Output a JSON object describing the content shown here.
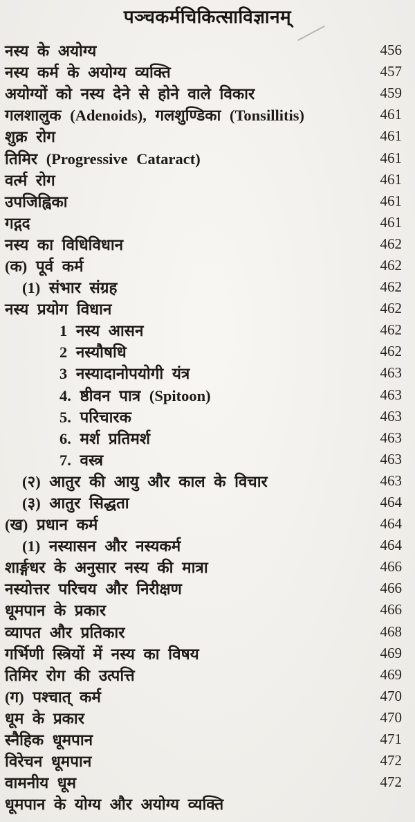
{
  "document": {
    "title": "पञ्चकर्मचिकित्साविज्ञानम्",
    "colors": {
      "paper": "#f4f2ed",
      "ink": "#1e1b17"
    },
    "toc": {
      "entries": [
        {
          "label": "नस्य के अयोग्य",
          "page": "456",
          "indent": 0
        },
        {
          "label": "नस्य कर्म के अयोग्य व्यक्ति",
          "page": "457",
          "indent": 0
        },
        {
          "label": "अयोग्यों को नस्य देने से होने वाले विकार",
          "page": "459",
          "indent": 0
        },
        {
          "label": "गलशालुक (Adenoids), गलशुण्डिका (Tonsillitis)",
          "page": "461",
          "indent": 0
        },
        {
          "label": "शुक्र रोग",
          "page": "461",
          "indent": 0
        },
        {
          "label": "तिमिर (Progressive Cataract)",
          "page": "461",
          "indent": 0
        },
        {
          "label": "वर्त्म रोग",
          "page": "461",
          "indent": 0
        },
        {
          "label": "उपजिह्विका",
          "page": "461",
          "indent": 0
        },
        {
          "label": "गद्गद",
          "page": "461",
          "indent": 0
        },
        {
          "label": "नस्य का विधिविधान",
          "page": "462",
          "indent": 0
        },
        {
          "label": "(क) पूर्व कर्म",
          "page": "462",
          "indent": 0
        },
        {
          "label": "(1) संभार संग्रह",
          "page": "462",
          "indent": 1
        },
        {
          "label": "नस्य प्रयोग विधान",
          "page": "462",
          "indent": 0
        },
        {
          "label": "1 नस्य आसन",
          "page": "462",
          "indent": 2
        },
        {
          "label": "2 नस्यौषधि",
          "page": "462",
          "indent": 2
        },
        {
          "label": "3 नस्यादानोपयोगी यंत्र",
          "page": "463",
          "indent": 2
        },
        {
          "label": "4. ष्ठीवन पात्र (Spitoon)",
          "page": "463",
          "indent": 2
        },
        {
          "label": "5. परिचारक",
          "page": "463",
          "indent": 2
        },
        {
          "label": "6. मर्श प्रतिमर्श",
          "page": "463",
          "indent": 2
        },
        {
          "label": "7. वस्त्र",
          "page": "463",
          "indent": 2
        },
        {
          "label": "(२) आतुर की आयु और काल के विचार",
          "page": "463",
          "indent": 1
        },
        {
          "label": "(३) आतुर सिद्धता",
          "page": "464",
          "indent": 1
        },
        {
          "label": "(ख) प्रधान कर्म",
          "page": "464",
          "indent": 0
        },
        {
          "label": "(1) नस्यासन और नस्यकर्म",
          "page": "464",
          "indent": 1
        },
        {
          "label": "शार्ङ्गधर के अनुसार नस्य की मात्रा",
          "page": "466",
          "indent": 0
        },
        {
          "label": "नस्योत्तर परिचय और निरीक्षण",
          "page": "466",
          "indent": 0
        },
        {
          "label": "धूमपान के प्रकार",
          "page": "466",
          "indent": 0
        },
        {
          "label": "व्यापत और प्रतिकार",
          "page": "468",
          "indent": 0
        },
        {
          "label": "गर्भिणी स्त्रियों में नस्य का विषय",
          "page": "469",
          "indent": 0
        },
        {
          "label": "तिमिर रोग की उत्पत्ति",
          "page": "469",
          "indent": 0
        },
        {
          "label": "(ग) पश्चात् कर्म",
          "page": "470",
          "indent": 0
        },
        {
          "label": "धूम के प्रकार",
          "page": "470",
          "indent": 0
        },
        {
          "label": "स्नैहिक धूमपान",
          "page": "471",
          "indent": 0
        },
        {
          "label": "विरेचन धूमपान",
          "page": "472",
          "indent": 0
        },
        {
          "label": "वामनीय धूम",
          "page": "472",
          "indent": 0
        },
        {
          "label": "धूमपान के योग्य और अयोग्य व्यक्ति",
          "page": "",
          "indent": 0
        }
      ]
    }
  }
}
